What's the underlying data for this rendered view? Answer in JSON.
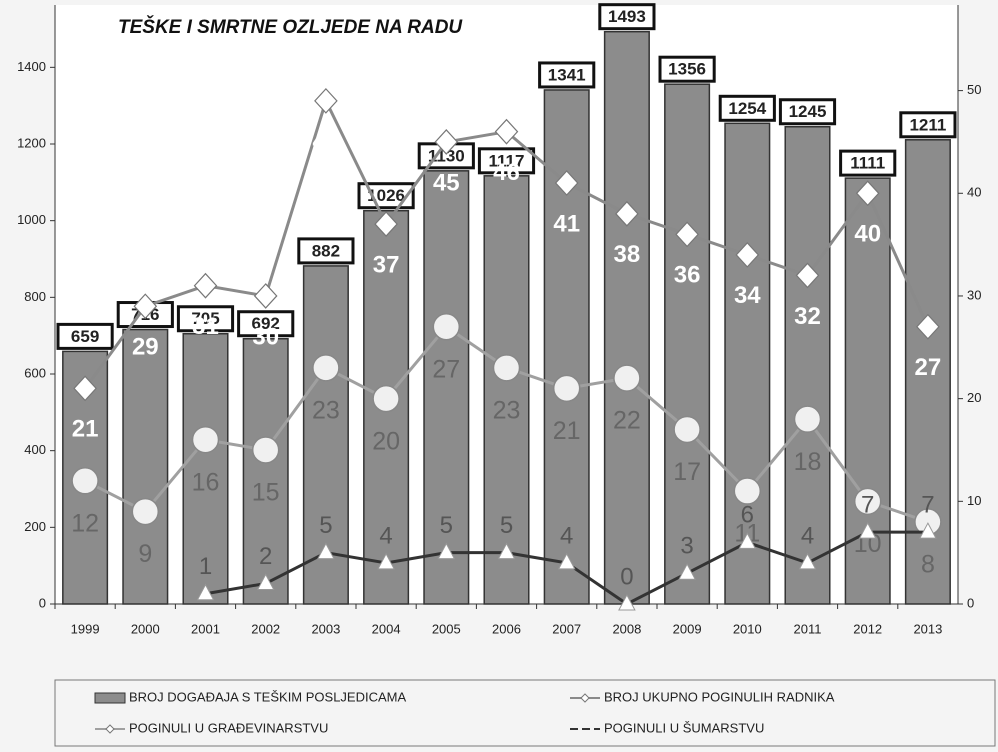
{
  "chart_data": {
    "type": "bar",
    "title": "TEŠKE I SMRTNE OZLJEDE NA RADU",
    "categories": [
      "1999",
      "2000",
      "2001",
      "2002",
      "2003",
      "2004",
      "2005",
      "2006",
      "2007",
      "2008",
      "2009",
      "2010",
      "2011",
      "2012",
      "2013"
    ],
    "ylim": [
      0,
      1500
    ],
    "yticks": [
      0,
      200,
      400,
      600,
      800,
      1000,
      1200,
      1400
    ],
    "y2lim": [
      0,
      56
    ],
    "y2ticks": [
      0,
      10,
      20,
      30,
      40,
      50
    ],
    "series": [
      {
        "name": "BROJ DOGAĐAJA S TEŠKIM POSLJEDICAMA",
        "type": "bar",
        "color": "#8c8c8c",
        "values": [
          659,
          716,
          705,
          692,
          882,
          1026,
          1130,
          1117,
          1341,
          1493,
          1356,
          1254,
          1245,
          1111,
          1211
        ]
      },
      {
        "name": "BROJ UKUPNO POGINULIH RADNIKA",
        "type": "line",
        "axis": "y2",
        "marker": "diamond",
        "color": "#8a8a8a",
        "values": [
          21,
          29,
          31,
          30,
          49,
          37,
          45,
          46,
          41,
          38,
          36,
          34,
          32,
          40,
          27
        ]
      },
      {
        "name": "POGINULI U GRAĐEVINARSTVU",
        "type": "line",
        "axis": "y2",
        "marker": "circle",
        "color": "#a0a0a0",
        "values": [
          12,
          9,
          16,
          15,
          23,
          20,
          27,
          23,
          21,
          22,
          17,
          11,
          18,
          10,
          8
        ]
      },
      {
        "name": "POGINULI U ŠUMARSTVU",
        "type": "line",
        "axis": "y2",
        "marker": "triangle",
        "color": "#333333",
        "values": [
          null,
          null,
          1,
          2,
          5,
          4,
          5,
          5,
          4,
          0,
          3,
          6,
          4,
          7,
          7
        ]
      }
    ]
  }
}
